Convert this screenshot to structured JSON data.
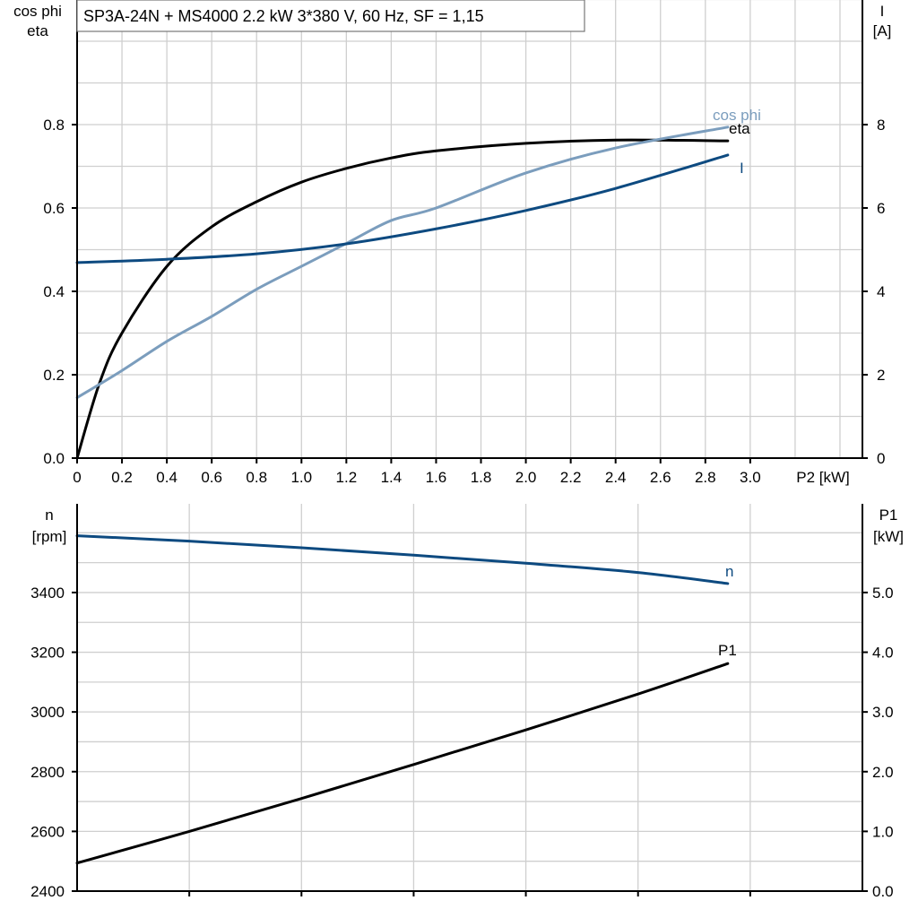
{
  "title": "SP3A-24N + MS4000   2.2 kW   3*380 V, 60 Hz, SF = 1,15",
  "colors": {
    "cos_phi": "#7b9dbd",
    "I": "#0d4a80",
    "eta": "#000000",
    "n": "#0d4a80",
    "P1": "#000000",
    "grid": "#cfcfcf"
  },
  "chart_data": [
    {
      "type": "line",
      "xlabel": "P2 [kW]",
      "ylabel_left": [
        "cos phi",
        "eta"
      ],
      "ylabel_right": [
        "I",
        "[A]"
      ],
      "xlim": [
        0,
        3.5
      ],
      "ylim_left": [
        0,
        1.0
      ],
      "ylim_right": [
        0,
        10
      ],
      "x_ticks": [
        "0",
        "0.2",
        "0.4",
        "0.6",
        "0.8",
        "1.0",
        "1.2",
        "1.4",
        "1.6",
        "1.8",
        "2.0",
        "2.2",
        "2.4",
        "2.6",
        "2.8",
        "3.0"
      ],
      "y_left_ticks": [
        "0.0",
        "0.2",
        "0.4",
        "0.6",
        "0.8"
      ],
      "y_right_ticks": [
        "0",
        "2",
        "4",
        "6",
        "8"
      ],
      "grid": true,
      "series": [
        {
          "name": "eta",
          "axis": "left",
          "color": "#000000",
          "x": [
            0,
            0.1,
            0.2,
            0.4,
            0.6,
            0.8,
            1.0,
            1.2,
            1.4,
            1.6,
            2.0,
            2.4,
            2.9
          ],
          "y": [
            0,
            0.18,
            0.3,
            0.46,
            0.555,
            0.615,
            0.662,
            0.695,
            0.72,
            0.737,
            0.755,
            0.763,
            0.761
          ]
        },
        {
          "name": "cos phi",
          "axis": "left",
          "color": "#7b9dbd",
          "x": [
            0,
            0.2,
            0.4,
            0.6,
            0.8,
            1.0,
            1.2,
            1.4,
            1.6,
            2.0,
            2.4,
            2.9
          ],
          "y": [
            0.145,
            0.21,
            0.28,
            0.34,
            0.405,
            0.46,
            0.515,
            0.57,
            0.6,
            0.684,
            0.744,
            0.794
          ]
        },
        {
          "name": "I",
          "axis": "right",
          "color": "#0d4a80",
          "x": [
            0,
            0.4,
            0.8,
            1.2,
            1.6,
            2.0,
            2.4,
            2.9
          ],
          "y": [
            4.69,
            4.77,
            4.9,
            5.14,
            5.5,
            5.94,
            6.47,
            7.27
          ]
        }
      ]
    },
    {
      "type": "line",
      "ylabel_left": [
        "n",
        "[rpm]"
      ],
      "ylabel_right": [
        "P1",
        "[kW]"
      ],
      "xlim": [
        0,
        3.5
      ],
      "ylim_left": [
        2400,
        3700
      ],
      "ylim_right": [
        0,
        6.5
      ],
      "y_left_ticks": [
        "2400",
        "2600",
        "2800",
        "3000",
        "3200",
        "3400"
      ],
      "y_right_ticks": [
        "0.0",
        "1.0",
        "2.0",
        "3.0",
        "4.0",
        "5.0"
      ],
      "grid": true,
      "series": [
        {
          "name": "n",
          "axis": "left",
          "color": "#0d4a80",
          "x": [
            0,
            0.5,
            1.0,
            1.5,
            2.0,
            2.5,
            2.9
          ],
          "y": [
            3590,
            3572,
            3550,
            3525,
            3498,
            3467,
            3430
          ]
        },
        {
          "name": "P1",
          "axis": "right",
          "color": "#000000",
          "x": [
            0,
            0.5,
            1.0,
            1.5,
            2.0,
            2.5,
            2.9
          ],
          "y": [
            0.47,
            1.0,
            1.55,
            2.12,
            2.7,
            3.3,
            3.81
          ]
        }
      ]
    }
  ]
}
